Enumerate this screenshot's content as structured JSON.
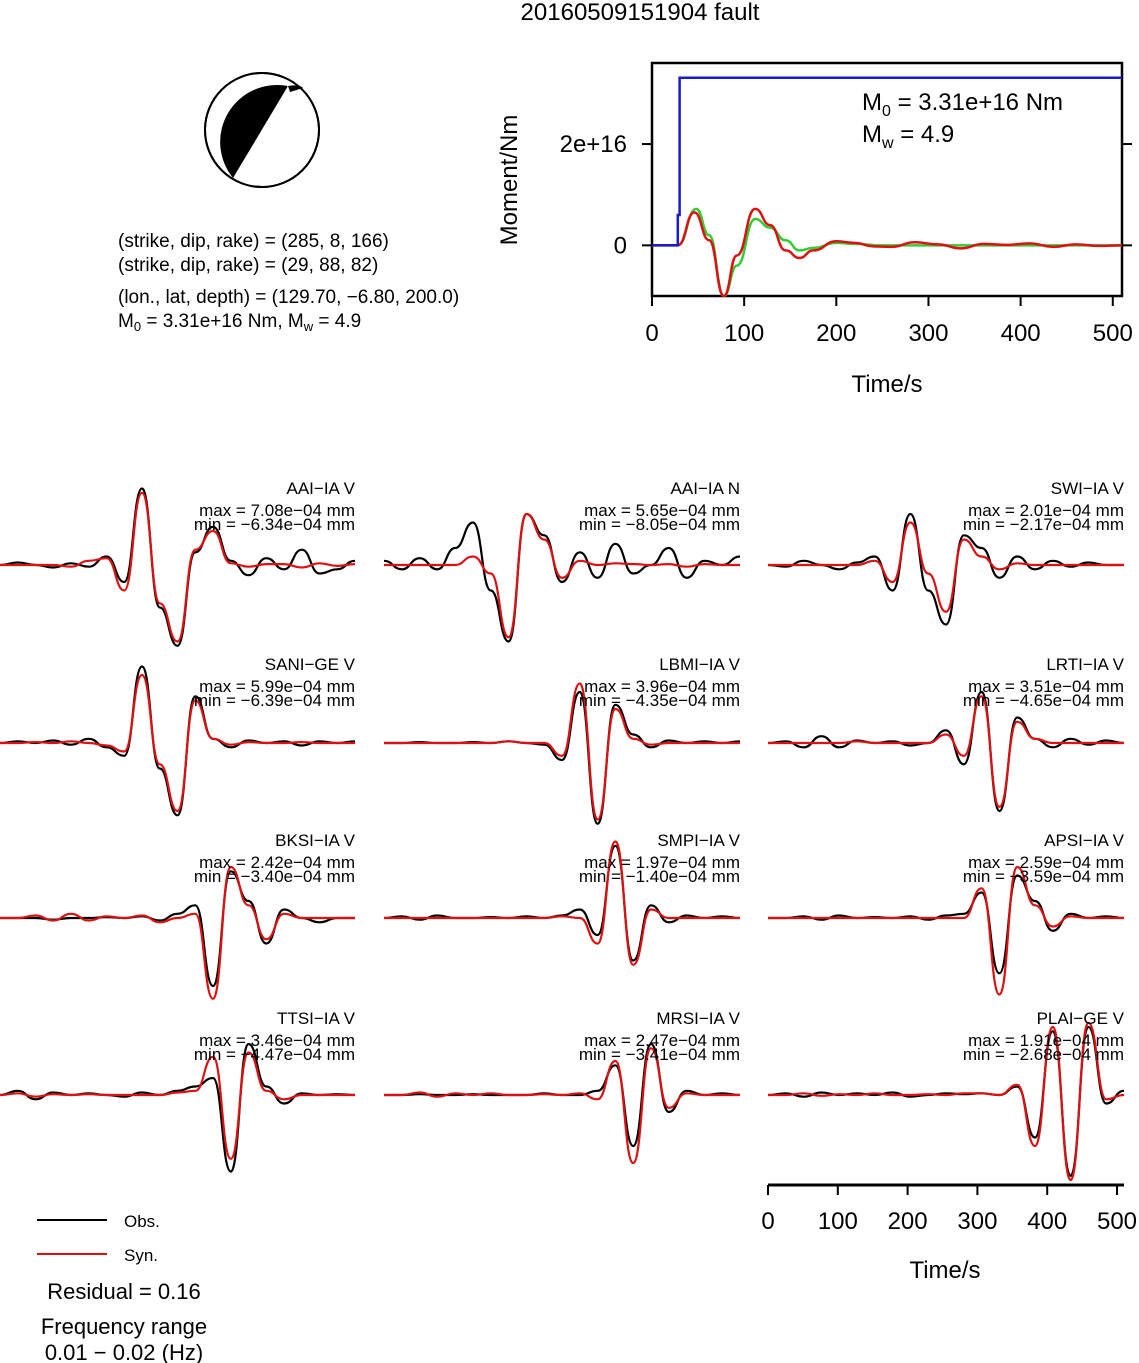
{
  "figure": {
    "title": "20160509151904 fault"
  },
  "focal_mechanism": {
    "plane1": "(strike, dip, rake) = (285, 8, 166)",
    "plane2": "(strike, dip, rake) = (29, 88, 82)",
    "location": "(lon., lat, depth) = (129.70, −6.80, 200.0)",
    "moment_line_a": "M",
    "moment_line_sub": "0",
    "moment_line_b": " = 3.31e+16 Nm, M",
    "moment_line_sub2": "w",
    "moment_line_c": " = 4.9",
    "colors": {
      "compression": "#000000",
      "dilatation": "#ffffff"
    }
  },
  "moment_panel": {
    "m0_main": "M",
    "m0_sub": "0",
    "m0_value": " = 3.31e+16 Nm",
    "mw_main": "M",
    "mw_sub": "w",
    "mw_value": " = 4.9"
  },
  "legend": {
    "obs_label": "Obs.",
    "syn_label": "Syn.",
    "residual": "Residual = 0.16",
    "freq_title": "Frequency range",
    "freq_value": "0.01 − 0.02 (Hz)"
  },
  "colors": {
    "observed": "#000000",
    "synthetic": "#dd1111",
    "cumulative_moment": "#1a1acc",
    "moment_rate_green": "#33cc33"
  },
  "chart_data": [
    {
      "type": "line",
      "name": "moment-function",
      "xlabel": "Time/s",
      "ylabel": "Moment/Nm",
      "xlim": [
        0,
        510
      ],
      "ylim": [
        -1e+16,
        3.6e+16
      ],
      "xticks": [
        0,
        100,
        200,
        300,
        400,
        500
      ],
      "yticks": [
        0,
        2e+16
      ],
      "ytick_labels": [
        "0",
        "2e+16"
      ],
      "series": [
        {
          "color": "#1a1acc",
          "x": [
            0,
            28,
            28,
            30,
            30,
            510
          ],
          "y": [
            0,
            0,
            6000000000000000.0,
            6000000000000000.0,
            3.31e+16,
            3.31e+16
          ]
        },
        {
          "color": "#33cc33",
          "x": [
            0,
            28,
            48,
            62,
            78,
            92,
            112,
            128,
            145,
            160,
            175,
            200,
            220,
            250,
            300,
            350,
            400,
            450,
            510
          ],
          "y": [
            0,
            0,
            7200000000000000.0,
            2000000000000000.0,
            -1e+16,
            -4000000000000000.0,
            5200000000000000.0,
            3500000000000000.0,
            1000000000000000.0,
            -1000000000000000.0,
            -500000000000000.0,
            500000000000000.0,
            300000000000000.0,
            0,
            0,
            0,
            0,
            0,
            0
          ]
        },
        {
          "color": "#dd1111",
          "x": [
            0,
            28,
            46,
            62,
            78,
            92,
            112,
            128,
            145,
            160,
            175,
            200,
            220,
            240,
            260,
            285,
            310,
            335,
            360,
            385,
            410,
            435,
            460,
            485,
            510
          ],
          "y": [
            0,
            0,
            6500000000000000.0,
            1000000000000000.0,
            -1e+16,
            -2000000000000000.0,
            7200000000000000.0,
            4000000000000000.0,
            -1000000000000000.0,
            -2500000000000000.0,
            -1000000000000000.0,
            800000000000000.0,
            500000000000000.0,
            -200000000000000.0,
            -300000000000000.0,
            600000000000000.0,
            200000000000000.0,
            -600000000000000.0,
            300000000000000.0,
            100000000000000.0,
            400000000000000.0,
            -300000000000000.0,
            200000000000000.0,
            -100000000000000.0,
            0
          ]
        }
      ]
    },
    {
      "type": "line",
      "name": "waveform-fits",
      "xlabel": "Time/s",
      "xlim": [
        0,
        510
      ],
      "xticks": [
        0,
        100,
        200,
        300,
        400,
        500
      ],
      "series_names": [
        "Obs.",
        "Syn."
      ],
      "stations": [
        {
          "label": "AAI−IA V",
          "max": "max = 7.08e−04 mm",
          "min": "min = −6.34e−04 mm",
          "obs": [
            0,
            0.03,
            0,
            -0.03,
            0.02,
            -0.02,
            0.1,
            -0.2,
            0.9,
            -0.5,
            -0.95,
            0.15,
            0.45,
            0.05,
            -0.12,
            0.08,
            -0.05,
            0.18,
            -0.1,
            -0.05,
            0.05
          ],
          "syn": [
            0,
            0,
            0,
            0,
            -0.02,
            0.05,
            0.08,
            -0.3,
            0.85,
            -0.45,
            -0.9,
            0.18,
            0.4,
            0.02,
            -0.02,
            0.01,
            0.01,
            -0.03,
            0.02,
            -0.01,
            0.01
          ]
        },
        {
          "label": "AAI−IA N",
          "max": "max = 5.65e−04 mm",
          "min": "min = −8.05e−04 mm",
          "obs": [
            0.05,
            -0.05,
            0.08,
            -0.05,
            0.2,
            0.5,
            -0.3,
            -0.9,
            0.6,
            0.35,
            -0.2,
            0.15,
            -0.15,
            0.25,
            -0.1,
            0,
            0.2,
            -0.15,
            0.05,
            0,
            0.1
          ],
          "syn": [
            0,
            0,
            0,
            0,
            0,
            0.1,
            -0.1,
            -0.85,
            0.6,
            0.3,
            -0.15,
            0.05,
            0,
            0.02,
            0.01,
            0,
            0.01,
            -0.02,
            0.01,
            0,
            0
          ]
        },
        {
          "label": "SWI−IA V",
          "max": "max = 2.01e−04 mm",
          "min": "min = −2.17e−04 mm",
          "obs": [
            0,
            -0.02,
            0.05,
            0,
            -0.05,
            0.03,
            0.1,
            -0.3,
            0.6,
            -0.3,
            -0.7,
            0.35,
            0.2,
            -0.15,
            0.1,
            -0.05,
            0.05,
            -0.02,
            0.03,
            0,
            0
          ],
          "syn": [
            0,
            0,
            0,
            0,
            0,
            0,
            0.05,
            -0.2,
            0.5,
            -0.1,
            -0.55,
            0.3,
            0.1,
            -0.05,
            0.02,
            0,
            0,
            0,
            0,
            0,
            0
          ]
        },
        {
          "label": "SANI−GE V",
          "max": "max = 5.99e−04 mm",
          "min": "min = −6.39e−04 mm",
          "obs": [
            0,
            0.02,
            0,
            0.03,
            -0.02,
            0.05,
            -0.05,
            -0.15,
            0.9,
            -0.3,
            -0.85,
            0.55,
            0.05,
            -0.05,
            0.03,
            0,
            0.02,
            -0.03,
            0.02,
            0,
            0.02
          ],
          "syn": [
            0,
            0,
            0.01,
            0,
            0.02,
            0,
            -0.03,
            -0.1,
            0.8,
            -0.25,
            -0.8,
            0.5,
            0.05,
            -0.02,
            0.01,
            0,
            0,
            0.01,
            0,
            0,
            0
          ]
        },
        {
          "label": "LBMI−IA V",
          "max": "max = 3.96e−04 mm",
          "min": "min = −4.35e−04 mm",
          "obs": [
            0,
            0,
            0.01,
            0,
            0,
            0.01,
            0,
            0.02,
            0,
            -0.02,
            -0.2,
            0.6,
            -0.95,
            0.45,
            0.1,
            -0.05,
            0.03,
            0,
            0.02,
            0,
            0.02
          ],
          "syn": [
            0,
            0,
            0,
            0,
            0,
            0,
            0,
            0.02,
            0,
            0,
            -0.15,
            0.7,
            -0.9,
            0.4,
            0.05,
            -0.02,
            0,
            0,
            0,
            0,
            0
          ]
        },
        {
          "label": "LRTI−IA V",
          "max": "max = 3.51e−04 mm",
          "min": "min = −4.65e−04 mm",
          "obs": [
            0,
            0.02,
            -0.05,
            0.08,
            -0.05,
            0.03,
            0,
            0.02,
            -0.03,
            0,
            0.15,
            -0.25,
            0.6,
            -0.8,
            0.3,
            0.05,
            -0.05,
            0.05,
            -0.02,
            0.03,
            0
          ],
          "syn": [
            0,
            0,
            0,
            0,
            0,
            0.02,
            0,
            0,
            0,
            0,
            0.1,
            -0.15,
            0.55,
            -0.75,
            0.25,
            0.05,
            0,
            0,
            0,
            0,
            0
          ]
        },
        {
          "label": "BKSI−IA V",
          "max": "max = 2.42e−04 mm",
          "min": "min = −3.40e−04 mm",
          "obs": [
            0,
            0,
            0,
            -0.02,
            0,
            0,
            0.01,
            0,
            0.02,
            -0.03,
            0.05,
            0.15,
            -0.8,
            0.55,
            0.2,
            -0.3,
            0.1,
            0,
            -0.05,
            0,
            0
          ],
          "syn": [
            0,
            0,
            0.03,
            -0.03,
            0.05,
            -0.03,
            0.02,
            0,
            0.03,
            -0.05,
            0,
            0.05,
            -0.95,
            0.6,
            0.15,
            -0.25,
            0.05,
            0,
            0,
            0,
            0
          ]
        },
        {
          "label": "SMPI−IA V",
          "max": "max = 1.97e−04 mm",
          "min": "min = −1.40e−04 mm",
          "obs": [
            0,
            0.02,
            -0.02,
            0.03,
            0,
            0,
            0.01,
            0,
            0.02,
            0,
            0.03,
            0.1,
            -0.2,
            0.85,
            -0.5,
            0.15,
            -0.05,
            0.03,
            0,
            0.02,
            0
          ],
          "syn": [
            0,
            0,
            0,
            0,
            0,
            0,
            0,
            0,
            0,
            0,
            0.02,
            0,
            -0.3,
            0.9,
            -0.55,
            0.1,
            0,
            0,
            0,
            0,
            0
          ]
        },
        {
          "label": "APSI−IA V",
          "max": "max = 2.59e−04 mm",
          "min": "min = −3.59e−04 mm",
          "obs": [
            0,
            0,
            0.02,
            -0.02,
            0.03,
            0,
            0.01,
            0,
            0.02,
            -0.02,
            0.03,
            0.05,
            0.3,
            -0.65,
            0.5,
            0.2,
            -0.15,
            0.05,
            0,
            0.02,
            0
          ],
          "syn": [
            0,
            0,
            0,
            0,
            0,
            0,
            0,
            0,
            0,
            0,
            0,
            0,
            0.35,
            -0.9,
            0.6,
            0.15,
            -0.1,
            0.02,
            0,
            0,
            0
          ]
        },
        {
          "label": "TTSI−IA V",
          "max": "max = 3.46e−04 mm",
          "min": "min = −4.47e−04 mm",
          "obs": [
            0,
            0.05,
            -0.05,
            0.03,
            0,
            0.02,
            0,
            -0.02,
            0.03,
            0,
            0.05,
            0.1,
            0.2,
            -0.9,
            0.6,
            0.1,
            -0.1,
            0.02,
            0,
            0.01,
            0
          ],
          "syn": [
            0,
            0.02,
            -0.02,
            0.01,
            0,
            0.01,
            0,
            0,
            0,
            0,
            0.03,
            0.05,
            0.45,
            -0.75,
            0.5,
            0.05,
            -0.05,
            0,
            0,
            0,
            0
          ]
        },
        {
          "label": "MRSI−IA V",
          "max": "max = 2.47e−04 mm",
          "min": "min = −3.41e−04 mm",
          "obs": [
            0,
            0,
            0.01,
            0,
            0,
            0.01,
            0,
            0,
            0,
            0.02,
            0,
            0,
            0.05,
            0.35,
            -0.6,
            0.6,
            -0.2,
            0.05,
            0,
            0.02,
            0
          ],
          "syn": [
            0,
            0,
            0.03,
            -0.02,
            0.02,
            0,
            0.02,
            0,
            0,
            0.01,
            0,
            0.02,
            -0.05,
            0.4,
            -0.8,
            0.55,
            -0.15,
            0.02,
            0,
            0,
            0
          ]
        },
        {
          "label": "PLAI−GE V",
          "max": "max = 1.91e−04 mm",
          "min": "min = −2.68e−04 mm",
          "obs": [
            0,
            0.02,
            -0.02,
            0.03,
            0,
            0.02,
            0,
            0.03,
            -0.02,
            0,
            0.02,
            0.01,
            0.02,
            0,
            0.1,
            -0.5,
            0.75,
            -0.95,
            0.8,
            -0.1,
            0.05
          ],
          "syn": [
            0,
            0,
            0.02,
            -0.01,
            0.01,
            0,
            0.02,
            0,
            0,
            0.01,
            0,
            0.02,
            0.02,
            0,
            0.12,
            -0.6,
            0.8,
            -1.0,
            0.85,
            -0.05,
            0
          ]
        }
      ]
    }
  ]
}
